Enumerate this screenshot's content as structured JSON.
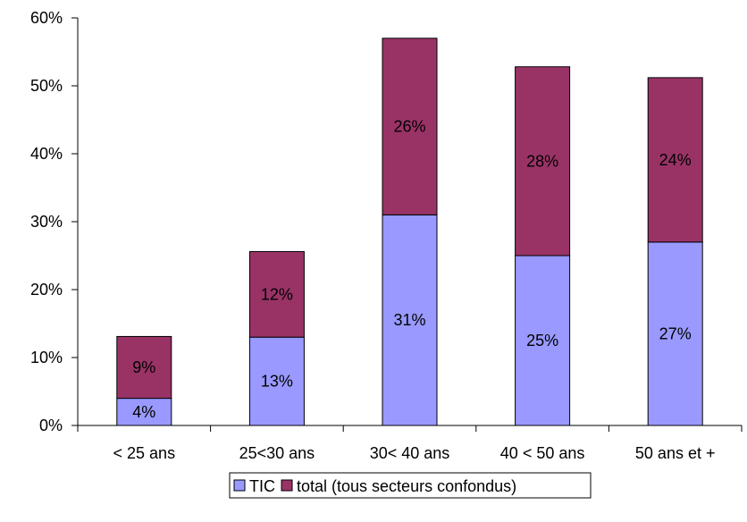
{
  "chart_data": {
    "type": "bar",
    "stacked": true,
    "categories": [
      "< 25 ans",
      "25<30 ans",
      "30< 40 ans",
      "40 < 50 ans",
      "50 ans et +"
    ],
    "series": [
      {
        "name": "TIC",
        "values": [
          4,
          13,
          31,
          25,
          27
        ],
        "labels": [
          "4%",
          "13%",
          "31%",
          "25%",
          "27%"
        ],
        "color": "#9999FF"
      },
      {
        "name": "total (tous secteurs confondus)",
        "values": [
          9,
          12,
          26,
          28,
          24
        ],
        "labels": [
          "9%",
          "12%",
          "26%",
          "28%",
          "24%"
        ],
        "color": "#993366"
      }
    ],
    "totals": [
      13.1,
      25.6,
      57.0,
      52.8,
      51.2
    ],
    "ylim": [
      0,
      60
    ],
    "yticks": [
      0,
      10,
      20,
      30,
      40,
      50,
      60
    ],
    "ytick_labels": [
      "0%",
      "10%",
      "20%",
      "30%",
      "40%",
      "50%",
      "60%"
    ],
    "grid": false,
    "legend": "bottom-center",
    "title": "",
    "xlabel": "",
    "ylabel": ""
  }
}
